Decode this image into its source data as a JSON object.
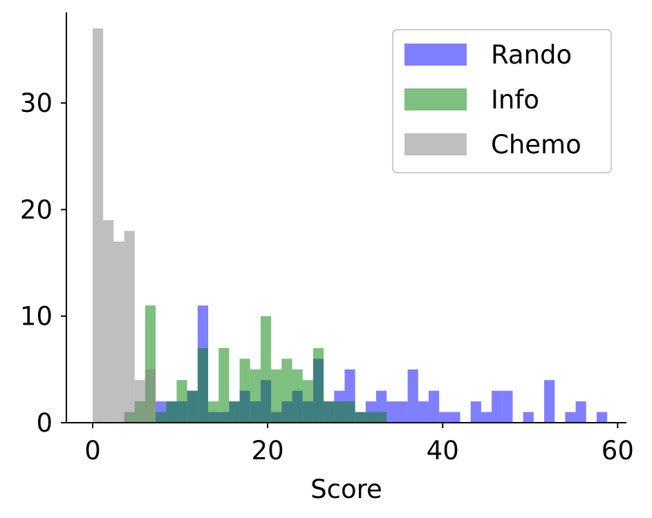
{
  "chart_data": {
    "type": "histogram",
    "title": "",
    "xlabel": "Score",
    "ylabel": "",
    "xlim": [
      -3,
      61
    ],
    "ylim": [
      0,
      38.5
    ],
    "bin_width": 1.2,
    "x_ticks": [
      0,
      20,
      40,
      60
    ],
    "y_ticks": [
      0,
      10,
      20,
      30
    ],
    "grid": false,
    "legend_position": "top-right",
    "series": [
      {
        "name": "Rando",
        "color": "#0000ff",
        "opacity": 0.5,
        "bins": [
          {
            "x": 7.2,
            "count": 2
          },
          {
            "x": 8.4,
            "count": 2
          },
          {
            "x": 9.6,
            "count": 2
          },
          {
            "x": 10.8,
            "count": 3
          },
          {
            "x": 12.0,
            "count": 11
          },
          {
            "x": 13.2,
            "count": 1
          },
          {
            "x": 14.4,
            "count": 1
          },
          {
            "x": 15.6,
            "count": 2
          },
          {
            "x": 16.8,
            "count": 3
          },
          {
            "x": 18.0,
            "count": 2
          },
          {
            "x": 19.2,
            "count": 4
          },
          {
            "x": 20.4,
            "count": 1
          },
          {
            "x": 21.6,
            "count": 2
          },
          {
            "x": 22.8,
            "count": 3
          },
          {
            "x": 24.0,
            "count": 2
          },
          {
            "x": 25.2,
            "count": 6
          },
          {
            "x": 26.4,
            "count": 2
          },
          {
            "x": 27.6,
            "count": 3
          },
          {
            "x": 28.8,
            "count": 5
          },
          {
            "x": 30.0,
            "count": 1
          },
          {
            "x": 31.2,
            "count": 2
          },
          {
            "x": 32.4,
            "count": 3
          },
          {
            "x": 33.6,
            "count": 2
          },
          {
            "x": 34.8,
            "count": 2
          },
          {
            "x": 36.0,
            "count": 5
          },
          {
            "x": 37.2,
            "count": 2
          },
          {
            "x": 38.4,
            "count": 3
          },
          {
            "x": 39.6,
            "count": 1
          },
          {
            "x": 40.8,
            "count": 1
          },
          {
            "x": 43.2,
            "count": 2
          },
          {
            "x": 44.4,
            "count": 1
          },
          {
            "x": 45.6,
            "count": 3
          },
          {
            "x": 46.8,
            "count": 3
          },
          {
            "x": 49.2,
            "count": 1
          },
          {
            "x": 51.6,
            "count": 4
          },
          {
            "x": 54.0,
            "count": 1
          },
          {
            "x": 55.2,
            "count": 2
          },
          {
            "x": 57.6,
            "count": 1
          }
        ]
      },
      {
        "name": "Info",
        "color": "#008000",
        "opacity": 0.5,
        "bins": [
          {
            "x": 3.6,
            "count": 1
          },
          {
            "x": 4.8,
            "count": 2
          },
          {
            "x": 6.0,
            "count": 11
          },
          {
            "x": 7.2,
            "count": 1
          },
          {
            "x": 8.4,
            "count": 2
          },
          {
            "x": 9.6,
            "count": 4
          },
          {
            "x": 10.8,
            "count": 3
          },
          {
            "x": 12.0,
            "count": 7
          },
          {
            "x": 13.2,
            "count": 2
          },
          {
            "x": 14.4,
            "count": 7
          },
          {
            "x": 15.6,
            "count": 2
          },
          {
            "x": 16.8,
            "count": 6
          },
          {
            "x": 18.0,
            "count": 5
          },
          {
            "x": 19.2,
            "count": 10
          },
          {
            "x": 20.4,
            "count": 5
          },
          {
            "x": 21.6,
            "count": 6
          },
          {
            "x": 22.8,
            "count": 5
          },
          {
            "x": 24.0,
            "count": 4
          },
          {
            "x": 25.2,
            "count": 7
          },
          {
            "x": 26.4,
            "count": 2
          },
          {
            "x": 27.6,
            "count": 2
          },
          {
            "x": 28.8,
            "count": 2
          },
          {
            "x": 30.0,
            "count": 1
          },
          {
            "x": 31.2,
            "count": 1
          },
          {
            "x": 32.4,
            "count": 1
          }
        ]
      },
      {
        "name": "Chemo",
        "color": "#808080",
        "opacity": 0.5,
        "bins": [
          {
            "x": 0.0,
            "count": 37
          },
          {
            "x": 1.2,
            "count": 19
          },
          {
            "x": 2.4,
            "count": 17
          },
          {
            "x": 3.6,
            "count": 18
          },
          {
            "x": 4.8,
            "count": 4
          },
          {
            "x": 6.0,
            "count": 5
          }
        ]
      }
    ]
  }
}
